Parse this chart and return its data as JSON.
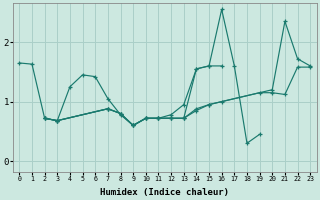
{
  "xlabel": "Humidex (Indice chaleur)",
  "bg_color": "#cce8e0",
  "grid_color": "#aacfc8",
  "line_color": "#1a7a6e",
  "xlim": [
    -0.5,
    23.5
  ],
  "ylim": [
    -0.18,
    2.65
  ],
  "xticks": [
    0,
    1,
    2,
    3,
    4,
    5,
    6,
    7,
    8,
    9,
    10,
    11,
    12,
    13,
    14,
    15,
    16,
    17,
    18,
    19,
    20,
    21,
    22,
    23
  ],
  "yticks": [
    0,
    1,
    2
  ],
  "line1_x": [
    0,
    1,
    2,
    3,
    4,
    5,
    6,
    7,
    8,
    9,
    10,
    11,
    12,
    13,
    14,
    15,
    16
  ],
  "line1_y": [
    1.65,
    1.63,
    0.72,
    0.68,
    1.25,
    1.45,
    1.42,
    1.05,
    0.78,
    0.6,
    0.72,
    0.72,
    0.78,
    0.95,
    1.55,
    1.6,
    1.6
  ],
  "line2_x": [
    2,
    3,
    7,
    8,
    9,
    10,
    11,
    12,
    13,
    14,
    15,
    16,
    17,
    18,
    19
  ],
  "line2_y": [
    0.72,
    0.68,
    0.88,
    0.8,
    0.6,
    0.72,
    0.72,
    0.72,
    0.72,
    1.55,
    1.6,
    2.55,
    1.6,
    0.3,
    0.45
  ],
  "line3_x": [
    2,
    3,
    7,
    8,
    9,
    10,
    11,
    12,
    13,
    14,
    15,
    20,
    21,
    22,
    23
  ],
  "line3_y": [
    0.72,
    0.68,
    0.88,
    0.8,
    0.6,
    0.72,
    0.72,
    0.72,
    0.72,
    0.88,
    0.95,
    1.2,
    2.35,
    1.72,
    1.6
  ],
  "line4_x": [
    2,
    3,
    7,
    8,
    9,
    10,
    11,
    12,
    13,
    14,
    15,
    16,
    19,
    20,
    21,
    22,
    23
  ],
  "line4_y": [
    0.72,
    0.68,
    0.88,
    0.8,
    0.6,
    0.72,
    0.72,
    0.72,
    0.72,
    0.85,
    0.95,
    1.0,
    1.15,
    1.15,
    1.12,
    1.58,
    1.58
  ]
}
